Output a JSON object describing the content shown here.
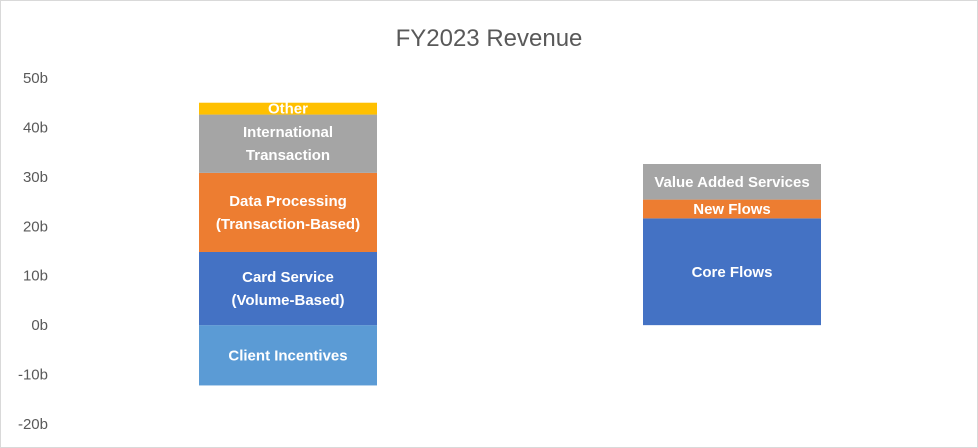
{
  "chart_data": {
    "type": "bar",
    "title": "FY2023 Revenue",
    "stacked": true,
    "ylim": [
      -20,
      50
    ],
    "yticks": [
      50,
      40,
      30,
      20,
      10,
      0,
      -10,
      -20
    ],
    "ytick_labels": [
      "50b",
      "40b",
      "30b",
      "20b",
      "10b",
      "0b",
      "-10b",
      "-20b"
    ],
    "grid": false,
    "legend": "none",
    "bars": [
      {
        "segments": [
          {
            "label": [
              "Client Incentives"
            ],
            "value": -12.2,
            "color": "#5B9BD5"
          },
          {
            "label": [
              "Card Service",
              "(Volume-Based)"
            ],
            "value": 14.8,
            "color": "#4472C4"
          },
          {
            "label": [
              "Data Processing",
              "(Transaction-Based)"
            ],
            "value": 16.0,
            "color": "#ED7D31"
          },
          {
            "label": [
              "International",
              "Transaction"
            ],
            "value": 11.8,
            "color": "#A5A5A5"
          },
          {
            "label": [
              "Other"
            ],
            "value": 2.4,
            "color": "#FFC000"
          }
        ]
      },
      {
        "segments": [
          {
            "label": [
              "Core Flows"
            ],
            "value": 21.6,
            "color": "#4472C4"
          },
          {
            "label": [
              "New Flows"
            ],
            "value": 3.8,
            "color": "#ED7D31"
          },
          {
            "label": [
              "Value Added Services"
            ],
            "value": 7.2,
            "color": "#A5A5A5"
          }
        ]
      }
    ]
  }
}
